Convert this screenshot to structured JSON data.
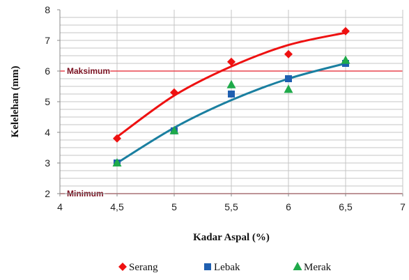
{
  "chart_data": {
    "type": "scatter",
    "xlabel": "Kadar Aspal (%)",
    "ylabel": "Kelelehan  (mm)",
    "xlim": [
      4,
      7
    ],
    "ylim": [
      2,
      8
    ],
    "x_ticks": [
      "4",
      "4,5",
      "5",
      "5,5",
      "6",
      "6,5",
      "7"
    ],
    "y_ticks": [
      "2",
      "3",
      "4",
      "5",
      "6",
      "7",
      "8"
    ],
    "minor_grid_step": 0.25,
    "grid": true,
    "legend_position": "bottom",
    "reference_lines": [
      {
        "label": "Maksimum",
        "y": 6,
        "color": "#e8454f"
      },
      {
        "label": "Minimum",
        "y": 2,
        "color": "#e8454f"
      }
    ],
    "series": [
      {
        "name": "Serang",
        "marker": "diamond",
        "color": "#ee1111",
        "trend_color": "#ee1111",
        "x": [
          4.5,
          5,
          5.5,
          6,
          6.5
        ],
        "y": [
          3.8,
          5.3,
          6.3,
          6.55,
          7.3
        ]
      },
      {
        "name": "Lebak",
        "marker": "square",
        "color": "#1f5fb0",
        "trend_color": "#1a7fa0",
        "x": [
          4.5,
          5,
          5.5,
          6,
          6.5
        ],
        "y": [
          3.0,
          4.05,
          5.25,
          5.75,
          6.25
        ]
      },
      {
        "name": "Merak",
        "marker": "triangle",
        "color": "#1faa4a",
        "trend_color": "#1a7fa0",
        "x": [
          4.5,
          5,
          5.5,
          6,
          6.5
        ],
        "y": [
          3.0,
          4.05,
          5.55,
          5.4,
          6.35
        ]
      }
    ],
    "trendlines": [
      {
        "series": "Serang",
        "color": "#ee1111",
        "x": [
          4.5,
          5,
          5.5,
          6,
          6.5
        ],
        "y": [
          3.85,
          5.2,
          6.15,
          6.85,
          7.25
        ]
      },
      {
        "series": "Lebak / Merak",
        "color": "#1a7fa0",
        "x": [
          4.5,
          5,
          5.5,
          6,
          6.5
        ],
        "y": [
          3.0,
          4.15,
          5.05,
          5.75,
          6.25
        ]
      }
    ]
  }
}
